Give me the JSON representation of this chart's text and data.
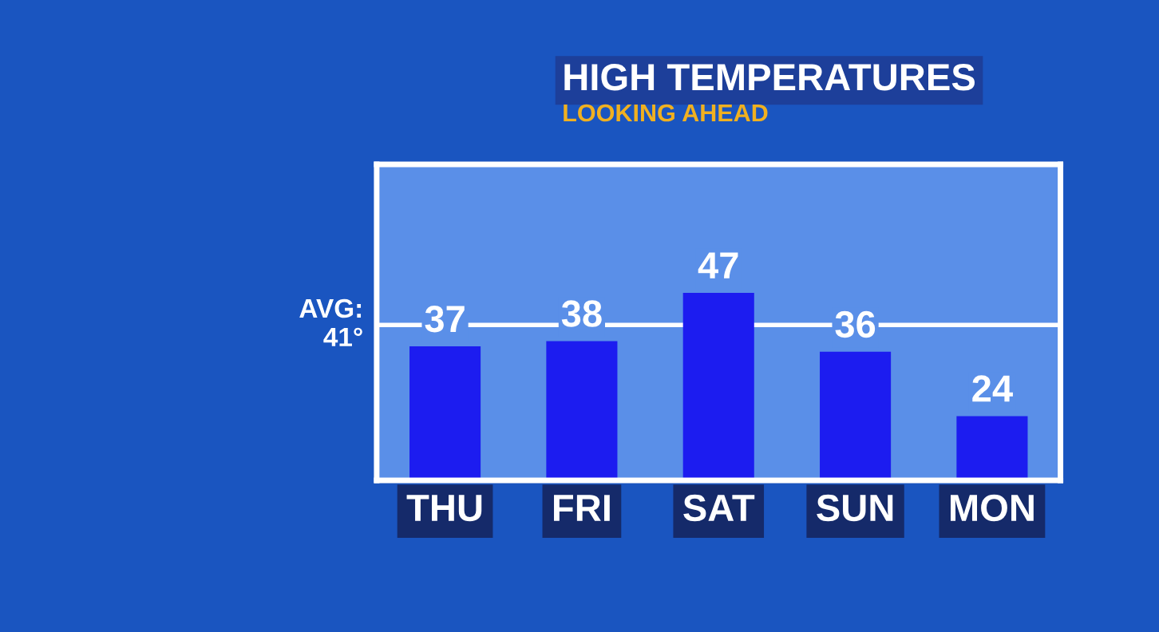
{
  "chart_data": {
    "type": "bar",
    "title": "HIGH TEMPERATURES",
    "subtitle": "LOOKING AHEAD",
    "categories": [
      "THU",
      "FRI",
      "SAT",
      "SUN",
      "MON"
    ],
    "values": [
      37,
      38,
      47,
      36,
      24
    ],
    "color": "#1c1cf0",
    "ylim": [
      12,
      71
    ],
    "data_labels": true,
    "grid": false,
    "legend": false,
    "ref_lines": [
      {
        "axis": "y",
        "value": 41,
        "label": "AVG:\n41°",
        "color": "#ffffff"
      }
    ]
  }
}
